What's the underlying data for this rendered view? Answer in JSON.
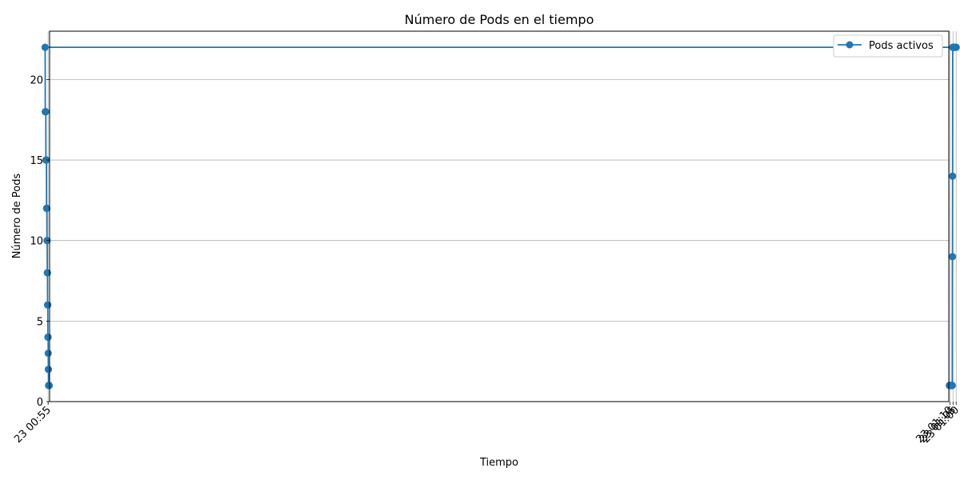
{
  "chart_data": {
    "type": "line",
    "title": "Número de Pods en el tiempo",
    "xlabel": "Tiempo",
    "ylabel": "Número de Pods",
    "x_unit": "time (HH:MM:SS)",
    "xlim": [
      "00:52:40",
      "01:11:40"
    ],
    "ylim": [
      0,
      23
    ],
    "x_ticks": [
      {
        "time": "00:55:00",
        "label": "23 00:55"
      },
      {
        "time": "01:00:00",
        "label": "23 01:00"
      },
      {
        "time": "01:05:00",
        "label": "23 01:05"
      },
      {
        "time": "01:10:00",
        "label": "23 01:10"
      }
    ],
    "y_ticks": [
      0,
      5,
      10,
      15,
      20
    ],
    "grid": true,
    "legend_position": "top-right",
    "series": [
      {
        "name": "Pods activos",
        "color": "#1f77b4",
        "marker": "circle",
        "x": [
          "00:53:10",
          "00:53:20",
          "00:53:30",
          "00:53:40",
          "00:53:50",
          "00:54:00",
          "00:54:10",
          "00:54:20",
          "00:54:30",
          "00:54:40",
          "00:54:50",
          "00:55:00",
          "00:55:10",
          "00:55:20",
          "00:55:30",
          "00:55:40",
          "00:55:50",
          "00:56:00",
          "00:56:10",
          "00:56:20",
          "00:56:30",
          "00:56:40",
          "00:56:50",
          "00:57:00",
          "00:57:10",
          "00:57:20",
          "00:57:30",
          "00:57:40",
          "00:57:50",
          "00:58:00",
          "00:58:10",
          "00:58:20",
          "00:58:30",
          "00:58:40",
          "00:58:50",
          "00:59:00",
          "00:59:10",
          "00:59:20",
          "00:59:30",
          "00:59:40",
          "00:59:50",
          "01:00:00",
          "01:00:10",
          "01:00:20",
          "01:00:30",
          "01:00:40",
          "01:00:50",
          "01:01:00",
          "01:01:10",
          "01:01:20",
          "01:01:30",
          "01:01:40",
          "01:01:50",
          "01:02:00",
          "01:02:10",
          "01:02:20",
          "01:02:30",
          "01:02:40",
          "01:02:50",
          "01:03:00",
          "01:03:10",
          "01:03:20",
          "01:03:30",
          "01:03:40",
          "01:03:50",
          "01:04:00",
          "01:04:10",
          "01:04:20",
          "01:04:30",
          "01:04:40",
          "01:04:50",
          "01:05:00",
          "01:05:10",
          "01:05:20",
          "01:05:30",
          "01:05:40",
          "01:05:50",
          "01:06:00",
          "01:06:10",
          "01:06:20",
          "01:06:30",
          "01:06:40",
          "01:06:50",
          "01:07:00",
          "01:07:10",
          "01:07:20",
          "01:07:30",
          "01:07:40",
          "01:07:50",
          "01:08:00",
          "01:08:10",
          "01:08:20",
          "01:08:30",
          "01:08:40",
          "01:08:50",
          "01:09:00",
          "01:09:10",
          "01:09:20",
          "01:09:30",
          "01:09:40",
          "01:09:50",
          "01:10:00",
          "01:10:10",
          "01:10:20",
          "01:10:30",
          "01:10:40",
          "01:10:50"
        ],
        "y": [
          1,
          1,
          1,
          1,
          1,
          1,
          1,
          1,
          2,
          2,
          3,
          4,
          4,
          4,
          6,
          6,
          6,
          8,
          8,
          8,
          10,
          10,
          10,
          12,
          12,
          12,
          12,
          15,
          15,
          15,
          15,
          15,
          15,
          18,
          18,
          18,
          18,
          18,
          18,
          22,
          22,
          22,
          22,
          22,
          22,
          22,
          22,
          22,
          22,
          22,
          22,
          22,
          22,
          22,
          22,
          22,
          22,
          22,
          22,
          22,
          22,
          22,
          22,
          22,
          22,
          22,
          22,
          22,
          22,
          22,
          22,
          22,
          22,
          22,
          22,
          14,
          9,
          9,
          1,
          1,
          1,
          1,
          1,
          1,
          1,
          1,
          1,
          1,
          1,
          1,
          1,
          1,
          1,
          1,
          1,
          1,
          1,
          1,
          1,
          1,
          1,
          1,
          1,
          1,
          1,
          1,
          1
        ]
      }
    ]
  }
}
